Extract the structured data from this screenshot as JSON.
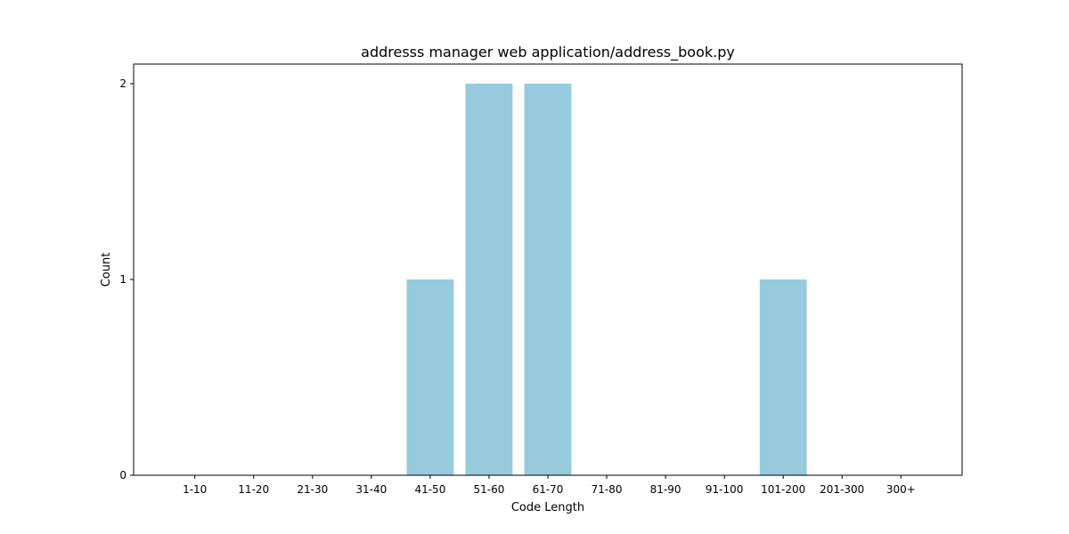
{
  "chart_data": {
    "type": "bar",
    "title": "addresss manager web application/address_book.py",
    "xlabel": "Code Length",
    "ylabel": "Count",
    "categories": [
      "1-10",
      "11-20",
      "21-30",
      "31-40",
      "41-50",
      "51-60",
      "61-70",
      "71-80",
      "81-90",
      "91-100",
      "101-200",
      "201-300",
      "300+"
    ],
    "values": [
      0,
      0,
      0,
      0,
      1,
      2,
      2,
      0,
      0,
      0,
      1,
      0,
      0
    ],
    "ylim": [
      0,
      2.1
    ],
    "yticks": [
      0,
      1,
      2
    ],
    "grid": false,
    "bar_color": "#96cadc"
  }
}
